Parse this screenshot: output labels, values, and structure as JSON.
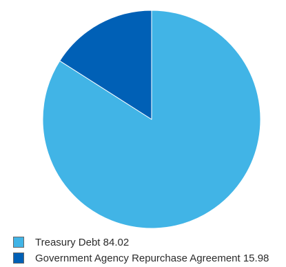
{
  "chart_data": {
    "type": "pie",
    "start_angle": "12 o'clock",
    "direction": "clockwise",
    "slices": [
      {
        "label": "Treasury Debt",
        "value": 84.02,
        "color": "#41b4e6"
      },
      {
        "label": "Government Agency Repurchase Agreement",
        "value": 15.98,
        "color": "#0060b6"
      }
    ],
    "legend_placement": "bottom-left",
    "slice_border_color": "#ffffff"
  }
}
